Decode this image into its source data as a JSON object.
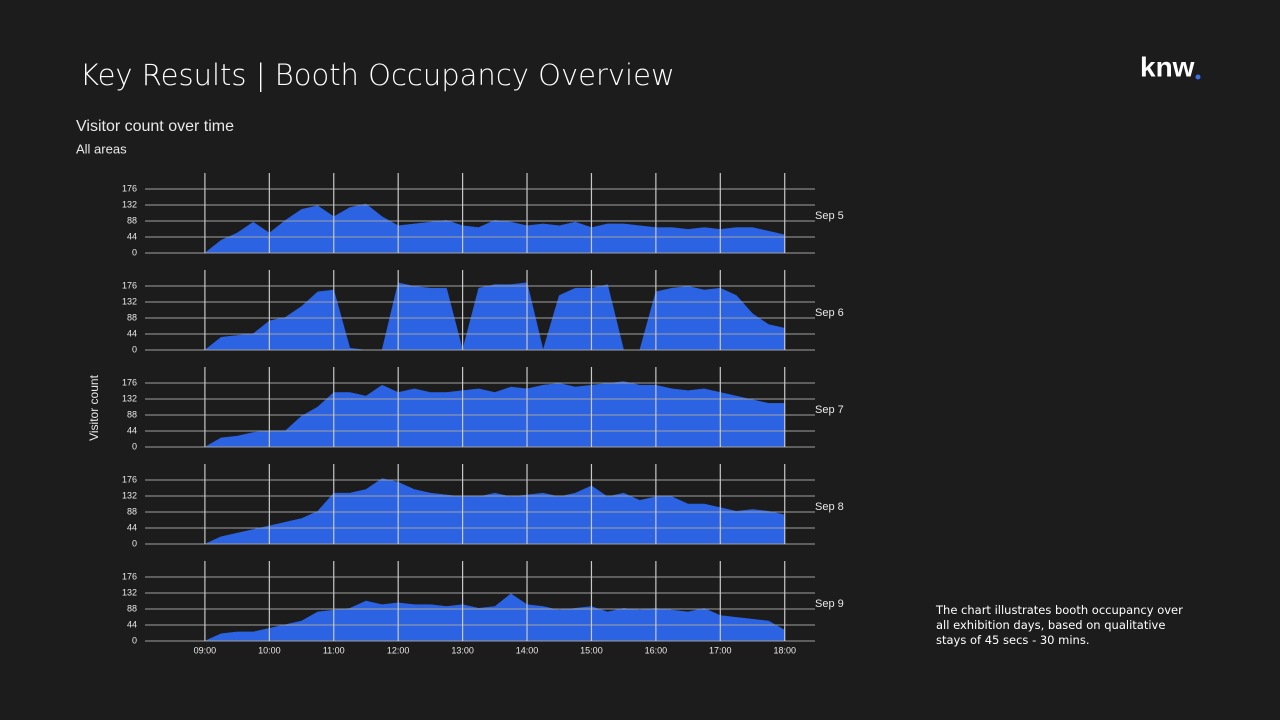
{
  "title": "Key Results | Booth Occupancy Overview",
  "logo": "knw",
  "chart_title": "Visitor count over time",
  "chart_subtitle": "All areas",
  "y_label": "Visitor count",
  "note": "The chart illustrates booth occupancy over all exhibition days, based on qualitative stays of 45 secs - 30 mins.",
  "chart_data": [
    {
      "type": "area",
      "name": "Sep 5",
      "color": "#2b63e3",
      "grid": true,
      "x": [
        8.25,
        8.5,
        8.75,
        9,
        9.25,
        9.5,
        9.75,
        10,
        10.25,
        10.5,
        10.75,
        11,
        11.25,
        11.5,
        11.75,
        12,
        12.25,
        12.5,
        12.75,
        13,
        13.25,
        13.5,
        13.75,
        14,
        14.25,
        14.5,
        14.75,
        15,
        15.25,
        15.5,
        15.75,
        16,
        16.25,
        16.5,
        16.75,
        17,
        17.25,
        17.5,
        17.75,
        18
      ],
      "values": [
        0,
        0,
        0,
        0,
        35,
        55,
        85,
        55,
        90,
        120,
        130,
        100,
        125,
        135,
        100,
        75,
        80,
        85,
        90,
        75,
        70,
        90,
        85,
        75,
        80,
        75,
        85,
        70,
        80,
        80,
        75,
        70,
        70,
        65,
        70,
        65,
        70,
        70,
        60,
        50
      ],
      "xlim": [
        8.07,
        18.47
      ],
      "ylim": [
        0,
        220
      ],
      "yticks": [
        0,
        44,
        88,
        132,
        176
      ],
      "xticks": [
        9,
        10,
        11,
        12,
        13,
        14,
        15,
        16,
        17,
        18
      ]
    },
    {
      "type": "area",
      "name": "Sep 6",
      "color": "#2b63e3",
      "grid": true,
      "x": [
        8.25,
        8.5,
        8.75,
        9,
        9.25,
        9.5,
        9.75,
        10,
        10.25,
        10.5,
        10.75,
        11,
        11.25,
        11.5,
        11.75,
        12,
        12.25,
        12.5,
        12.75,
        13,
        13.25,
        13.5,
        13.75,
        14,
        14.25,
        14.5,
        14.75,
        15,
        15.25,
        15.5,
        15.75,
        16,
        16.25,
        16.5,
        16.75,
        17,
        17.25,
        17.5,
        17.75,
        18
      ],
      "values": [
        0,
        0,
        0,
        0,
        35,
        40,
        45,
        80,
        90,
        120,
        160,
        165,
        5,
        0,
        0,
        185,
        175,
        170,
        170,
        0,
        170,
        180,
        180,
        185,
        0,
        150,
        170,
        170,
        180,
        0,
        0,
        160,
        170,
        175,
        165,
        170,
        150,
        100,
        70,
        60
      ],
      "xlim": [
        8.07,
        18.47
      ],
      "ylim": [
        0,
        220
      ],
      "yticks": [
        0,
        44,
        88,
        132,
        176
      ],
      "xticks": [
        9,
        10,
        11,
        12,
        13,
        14,
        15,
        16,
        17,
        18
      ]
    },
    {
      "type": "area",
      "name": "Sep 7",
      "color": "#2b63e3",
      "grid": true,
      "x": [
        8.25,
        8.5,
        8.75,
        9,
        9.25,
        9.5,
        9.75,
        10,
        10.25,
        10.5,
        10.75,
        11,
        11.25,
        11.5,
        11.75,
        12,
        12.25,
        12.5,
        12.75,
        13,
        13.25,
        13.5,
        13.75,
        14,
        14.25,
        14.5,
        14.75,
        15,
        15.25,
        15.5,
        15.75,
        16,
        16.25,
        16.5,
        16.75,
        17,
        17.25,
        17.5,
        17.75,
        18
      ],
      "values": [
        0,
        0,
        0,
        0,
        25,
        30,
        40,
        45,
        45,
        85,
        110,
        150,
        150,
        140,
        170,
        150,
        160,
        150,
        150,
        155,
        160,
        150,
        165,
        160,
        170,
        175,
        165,
        170,
        175,
        180,
        170,
        170,
        160,
        155,
        160,
        150,
        140,
        130,
        120,
        120
      ],
      "xlim": [
        8.07,
        18.47
      ],
      "ylim": [
        0,
        220
      ],
      "yticks": [
        0,
        44,
        88,
        132,
        176
      ],
      "xticks": [
        9,
        10,
        11,
        12,
        13,
        14,
        15,
        16,
        17,
        18
      ]
    },
    {
      "type": "area",
      "name": "Sep 8",
      "color": "#2b63e3",
      "grid": true,
      "x": [
        8.25,
        8.5,
        8.75,
        9,
        9.25,
        9.5,
        9.75,
        10,
        10.25,
        10.5,
        10.75,
        11,
        11.25,
        11.5,
        11.75,
        12,
        12.25,
        12.5,
        12.75,
        13,
        13.25,
        13.5,
        13.75,
        14,
        14.25,
        14.5,
        14.75,
        15,
        15.25,
        15.5,
        15.75,
        16,
        16.25,
        16.5,
        16.75,
        17,
        17.25,
        17.5,
        17.75,
        18
      ],
      "values": [
        0,
        0,
        0,
        0,
        20,
        30,
        40,
        50,
        60,
        70,
        90,
        140,
        140,
        150,
        180,
        170,
        150,
        140,
        135,
        130,
        130,
        140,
        130,
        135,
        140,
        130,
        140,
        160,
        130,
        140,
        120,
        130,
        130,
        110,
        110,
        100,
        90,
        95,
        90,
        80
      ],
      "xlim": [
        8.07,
        18.47
      ],
      "ylim": [
        0,
        220
      ],
      "yticks": [
        0,
        44,
        88,
        132,
        176
      ],
      "xticks": [
        9,
        10,
        11,
        12,
        13,
        14,
        15,
        16,
        17,
        18
      ]
    },
    {
      "type": "area",
      "name": "Sep 9",
      "color": "#2b63e3",
      "grid": true,
      "x": [
        8.25,
        8.5,
        8.75,
        9,
        9.25,
        9.5,
        9.75,
        10,
        10.25,
        10.5,
        10.75,
        11,
        11.25,
        11.5,
        11.75,
        12,
        12.25,
        12.5,
        12.75,
        13,
        13.25,
        13.5,
        13.75,
        14,
        14.25,
        14.5,
        14.75,
        15,
        15.25,
        15.5,
        15.75,
        16,
        16.25,
        16.5,
        16.75,
        17,
        17.25,
        17.5,
        17.75,
        18
      ],
      "values": [
        0,
        0,
        0,
        0,
        20,
        25,
        25,
        35,
        45,
        55,
        80,
        85,
        90,
        110,
        100,
        105,
        100,
        100,
        95,
        100,
        90,
        95,
        130,
        100,
        95,
        85,
        90,
        95,
        80,
        90,
        85,
        90,
        85,
        80,
        90,
        70,
        65,
        60,
        55,
        30
      ],
      "xlim": [
        8.07,
        18.47
      ],
      "ylim": [
        0,
        220
      ],
      "yticks": [
        0,
        44,
        88,
        132,
        176
      ],
      "xticks": [
        {
          "value": 9,
          "label": "09:00"
        },
        {
          "value": 10,
          "label": "10:00"
        },
        {
          "value": 11,
          "label": "11:00"
        },
        {
          "value": 12,
          "label": "12:00"
        },
        {
          "value": 13,
          "label": "13:00"
        },
        {
          "value": 14,
          "label": "14:00"
        },
        {
          "value": 15,
          "label": "15:00"
        },
        {
          "value": 16,
          "label": "16:00"
        },
        {
          "value": 17,
          "label": "17:00"
        },
        {
          "value": 18,
          "label": "18:00"
        }
      ]
    }
  ]
}
